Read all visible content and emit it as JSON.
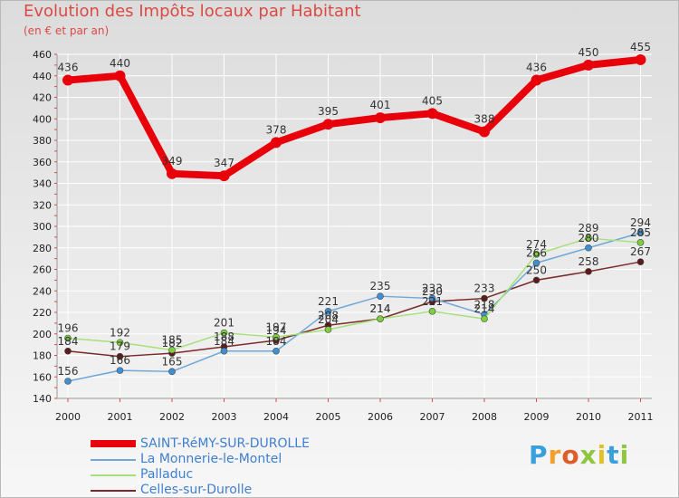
{
  "title": "Evolution des Impôts locaux par Habitant",
  "subtitle": "(en € et par an)",
  "brand": {
    "letters": [
      "P",
      "r",
      "o",
      "x",
      "i",
      "t",
      "i"
    ],
    "colors": [
      "#3aa0dd",
      "#f2a02b",
      "#e05d2b",
      "#8ec63f",
      "#e2c02a",
      "#3aa0dd",
      "#8ec63f"
    ]
  },
  "chart_data": {
    "type": "line",
    "title": "Evolution des Impôts locaux par Habitant",
    "subtitle": "(en € et par an)",
    "xlabel": "",
    "ylabel": "",
    "x": [
      "2000",
      "2001",
      "2002",
      "2003",
      "2004",
      "2005",
      "2006",
      "2007",
      "2008",
      "2009",
      "2010",
      "2011"
    ],
    "ylim": [
      140,
      460
    ],
    "yticks": [
      140,
      160,
      180,
      200,
      220,
      240,
      260,
      280,
      300,
      320,
      340,
      360,
      380,
      400,
      420,
      440,
      460
    ],
    "grid": true,
    "legend_position": "bottom-left",
    "series": [
      {
        "name": "SAINT-RéMY-SUR-DUROLLE",
        "color": "#e8000b",
        "marker_color": "#e8000b",
        "thick": true,
        "values": [
          436,
          440,
          349,
          347,
          378,
          395,
          401,
          405,
          388,
          436,
          450,
          455
        ],
        "labels": [
          "436",
          "440",
          "349",
          "347",
          "378",
          "395",
          "401",
          "405",
          "388",
          "436",
          "450",
          "455"
        ]
      },
      {
        "name": "La Monnerie-le-Montel",
        "color": "#6fa8d8",
        "marker_color": "#3f8fd3",
        "values": [
          156,
          166,
          165,
          184,
          184,
          221,
          235,
          233,
          218,
          266,
          280,
          294
        ],
        "labels": [
          "156",
          "166",
          "165",
          "184",
          "184",
          "221",
          "235",
          "233",
          "218",
          "266",
          "280",
          "294"
        ]
      },
      {
        "name": "Palladuc",
        "color": "#a6e07a",
        "marker_color": "#7cd13a",
        "values": [
          196,
          192,
          185,
          201,
          197,
          204,
          214,
          221,
          214,
          274,
          289,
          285
        ],
        "labels": [
          "196",
          "192",
          "185",
          "201",
          "197",
          "204",
          "214",
          "221",
          "214",
          "274",
          "289",
          "285"
        ]
      },
      {
        "name": "Celles-sur-Durolle",
        "color": "#7a2a2a",
        "marker_color": "#5e1b1b",
        "values": [
          184,
          179,
          182,
          188,
          194,
          208,
          214,
          230,
          233,
          250,
          258,
          267
        ],
        "labels": [
          "184",
          "179",
          "182",
          "188",
          "194",
          "208",
          "214",
          "230",
          "233",
          "250",
          "258",
          "267"
        ]
      }
    ]
  }
}
